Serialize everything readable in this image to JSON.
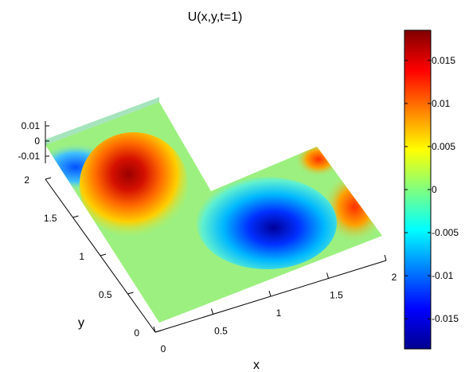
{
  "chart_data": {
    "type": "surface",
    "title": "U(x,y,t=1)",
    "xlabel": "x",
    "ylabel": "y",
    "zlabel": "",
    "xlim": [
      0,
      2
    ],
    "ylim": [
      0,
      2
    ],
    "zlim": [
      -0.01,
      0.01
    ],
    "x_ticks": [
      "0",
      "0.5",
      "1",
      "1.5",
      "2"
    ],
    "y_ticks": [
      "0",
      "0.5",
      "1",
      "1.5",
      "2"
    ],
    "z_ticks": [
      "0.01",
      "0",
      "-0.01"
    ],
    "domain": "L-shaped region: [0,2]x[0,1] union [0,1]x[1,2]",
    "features": [
      {
        "kind": "max",
        "x": 0.5,
        "y": 1.5,
        "value": 0.018
      },
      {
        "kind": "min",
        "x": 1.5,
        "y": 0.5,
        "value": -0.018
      }
    ],
    "colorbar": {
      "colormap": "jet",
      "range": [
        -0.0185,
        0.0185
      ],
      "ticks": [
        {
          "value": 0.015,
          "label": "0.015"
        },
        {
          "value": 0.01,
          "label": "0.01"
        },
        {
          "value": 0.005,
          "label": "0.005"
        },
        {
          "value": 0,
          "label": "0"
        },
        {
          "value": -0.005,
          "label": "-0.005"
        },
        {
          "value": -0.01,
          "label": "-0.01"
        },
        {
          "value": -0.015,
          "label": "-0.015"
        }
      ]
    },
    "grid": false,
    "legend": "none"
  }
}
